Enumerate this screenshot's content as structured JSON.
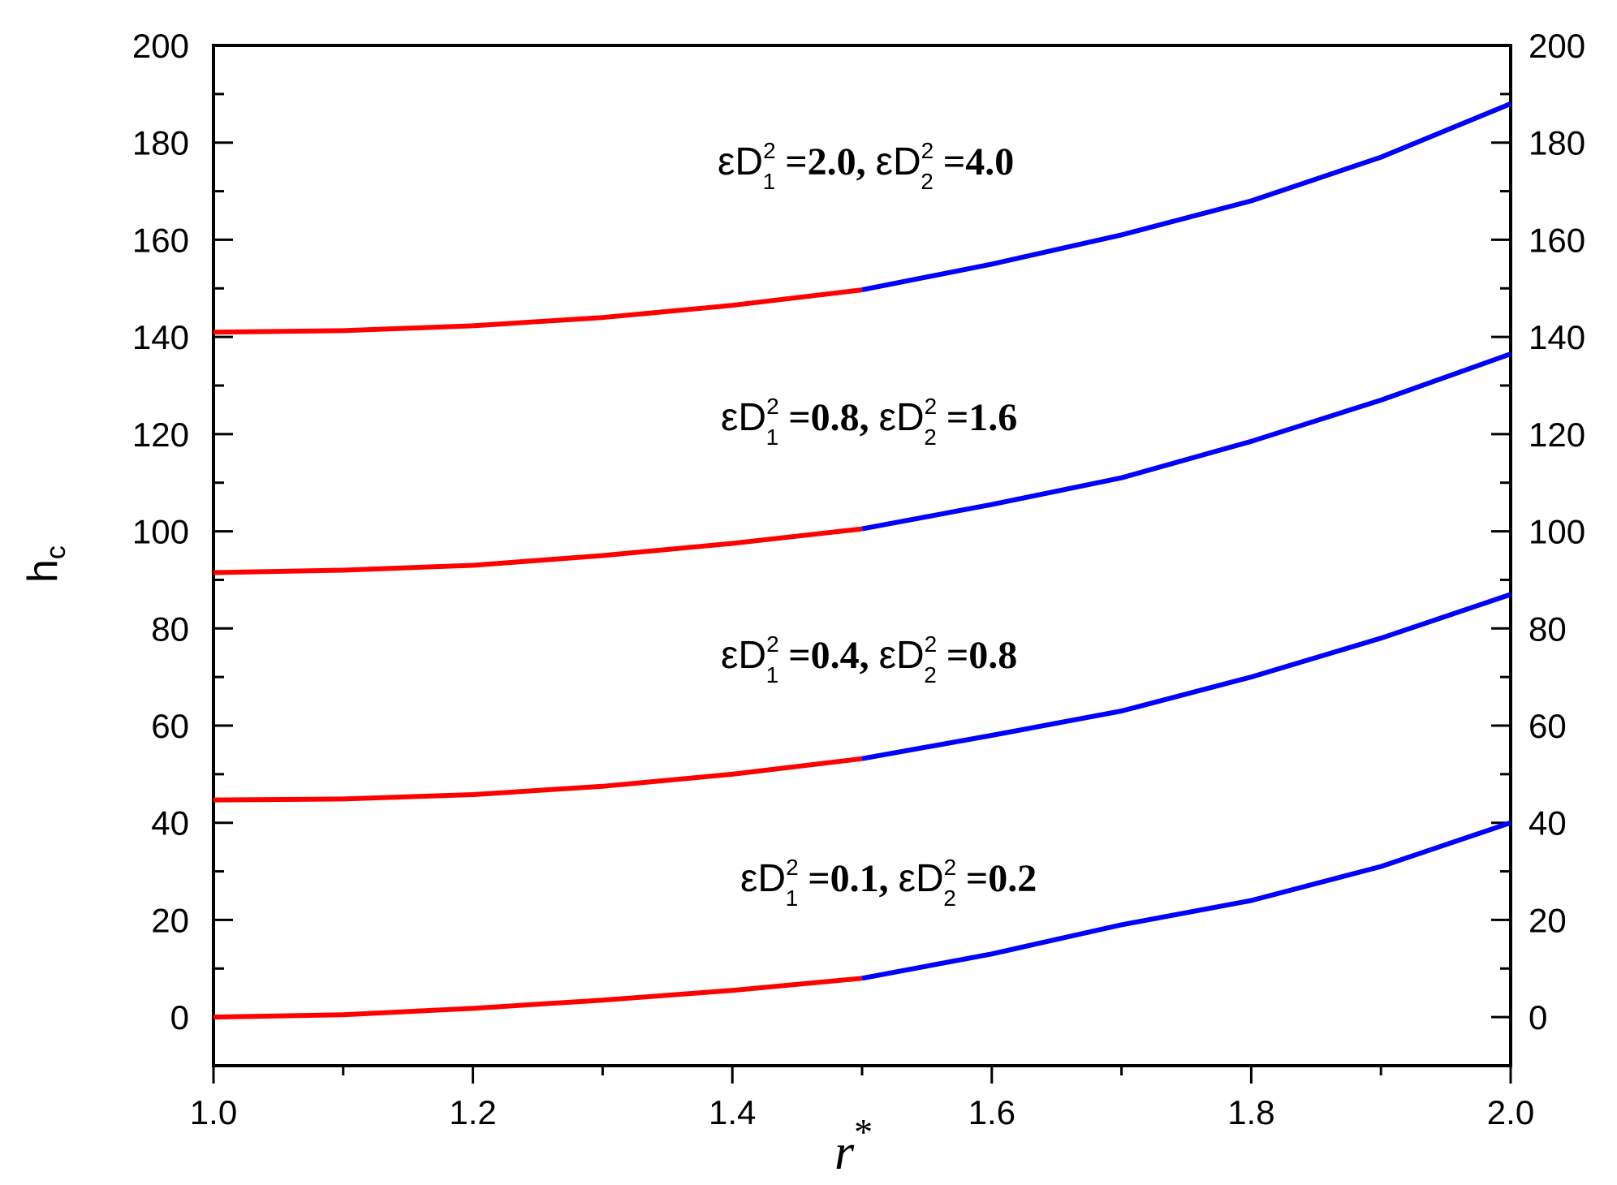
{
  "chart_data": {
    "type": "line",
    "title": "",
    "xlabel": "r",
    "xlabel_sup": "*",
    "ylabel": "h",
    "ylabel_sub": "c",
    "xlim": [
      1.0,
      2.0
    ],
    "ylim": [
      -10,
      200
    ],
    "x_ticks": [
      "1.0",
      "1.2",
      "1.4",
      "1.6",
      "1.8",
      "2.0"
    ],
    "y_ticks": [
      "0",
      "20",
      "40",
      "60",
      "80",
      "100",
      "120",
      "140",
      "160",
      "180",
      "200"
    ],
    "right_axis_ticks": [
      "0",
      "20",
      "40",
      "60",
      "80",
      "100",
      "120",
      "140",
      "160",
      "180",
      "200"
    ],
    "segment_split_x": 1.5,
    "colors": {
      "left_segment": "#ff0000",
      "right_segment": "#0000ff"
    },
    "x": [
      1.0,
      1.1,
      1.2,
      1.3,
      1.4,
      1.5,
      1.6,
      1.7,
      1.8,
      1.9,
      2.0
    ],
    "series": [
      {
        "values": [
          0,
          0.5,
          1.8,
          3.5,
          5.5,
          8,
          13,
          19,
          24,
          31,
          40
        ]
      },
      {
        "values": [
          44.7,
          44.9,
          45.8,
          47.5,
          50,
          53.2,
          58,
          63,
          70,
          78,
          87
        ]
      },
      {
        "values": [
          91.5,
          92,
          93,
          95,
          97.5,
          100.5,
          105.5,
          111,
          118.5,
          127,
          136.5
        ]
      },
      {
        "values": [
          141,
          141.3,
          142.3,
          144,
          146.5,
          149.7,
          155,
          161,
          168,
          177,
          188
        ]
      }
    ],
    "annotations": [
      {
        "eps": "ε",
        "D": "D",
        "sub1": "1",
        "sup": "2",
        "eq": " =",
        "val1": "0.1",
        "sep": ", ",
        "sub2": "2",
        "val2": "0.2"
      },
      {
        "eps": "ε",
        "D": "D",
        "sub1": "1",
        "sup": "2",
        "eq": " =",
        "val1": "0.4",
        "sep": ", ",
        "sub2": "2",
        "val2": "0.8"
      },
      {
        "eps": "ε",
        "D": "D",
        "sub1": "1",
        "sup": "2",
        "eq": " =",
        "val1": "0.8",
        "sep": ", ",
        "sub2": "2",
        "val2": "1.6"
      },
      {
        "eps": "ε",
        "D": "D",
        "sub1": "1",
        "sup": "2",
        "eq": " =",
        "val1": "2.0",
        "sep": ", ",
        "sub2": "2",
        "val2": "4.0"
      }
    ]
  }
}
